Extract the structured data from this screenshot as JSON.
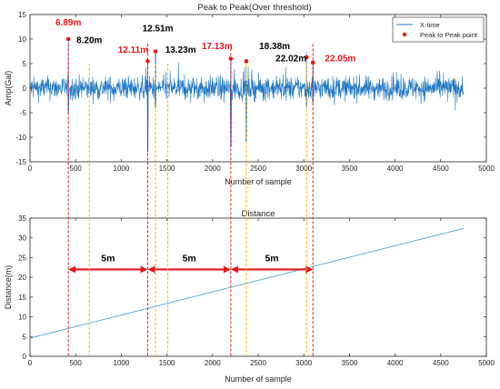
{
  "colors": {
    "signal": "#1f77c4",
    "peak": "#e8141b",
    "red_line": "#e8141b",
    "yellow_line": "#f2b705",
    "arrow": "#e8141b",
    "axis": "#262626"
  },
  "chart_data": [
    {
      "type": "line",
      "title": "Peak to Peak(Over threshold)",
      "xlabel": "Number of sample",
      "ylabel": "Amp(Gal)",
      "xlim": [
        0,
        5000
      ],
      "ylim": [
        -15,
        15
      ],
      "xticks": [
        "0",
        "500",
        "1000",
        "1500",
        "2000",
        "2500",
        "3000",
        "3500",
        "4000",
        "4500",
        "5000"
      ],
      "yticks": [
        "15",
        "10",
        "5",
        "0",
        "-5",
        "-10",
        "-15"
      ],
      "grid": false,
      "legend_position": "top-right",
      "series": [
        {
          "name": "X-time",
          "kind": "noisy-signal",
          "x_range": [
            0,
            4750
          ],
          "baseline_amplitude": 3,
          "spikes": [
            {
              "x": 420,
              "high": 10,
              "low": -5
            },
            {
              "x": 1290,
              "high": 5.5,
              "low": -13
            },
            {
              "x": 1375,
              "high": 7.5,
              "low": -4
            },
            {
              "x": 2200,
              "high": 6,
              "low": -12
            },
            {
              "x": 2370,
              "high": 5.5,
              "low": -11
            },
            {
              "x": 3030,
              "high": 7.5,
              "low": -4
            },
            {
              "x": 3100,
              "high": 5.5,
              "low": -3
            }
          ]
        },
        {
          "name": "Peak to Peak point",
          "kind": "markers",
          "points": [
            {
              "x": 420,
              "y": 10
            },
            {
              "x": 1290,
              "y": 5.5
            },
            {
              "x": 1375,
              "y": 7.5
            },
            {
              "x": 2200,
              "y": 6
            },
            {
              "x": 2370,
              "y": 5.5
            },
            {
              "x": 3030,
              "y": 6.3
            },
            {
              "x": 3100,
              "y": 5.2
            }
          ]
        }
      ],
      "annotations": [
        {
          "text": "6.89m",
          "style": "red",
          "x": 420,
          "y": 12.8
        },
        {
          "text": "8.20m",
          "style": "black",
          "x": 650,
          "y": 9.2
        },
        {
          "text": "12.11m",
          "style": "red",
          "x": 1130,
          "y": 7.2
        },
        {
          "text": "12.51m",
          "style": "black",
          "x": 1400,
          "y": 11.6
        },
        {
          "text": "13.23m",
          "style": "black",
          "x": 1650,
          "y": 7.2
        },
        {
          "text": "17.13m",
          "style": "red",
          "x": 2050,
          "y": 8.0
        },
        {
          "text": "18.38m",
          "style": "black",
          "x": 2680,
          "y": 8.0
        },
        {
          "text": "22.02m",
          "style": "black",
          "x": 2860,
          "y": 5.5
        },
        {
          "text": "22.05m",
          "style": "red",
          "x": 3400,
          "y": 5.5
        }
      ]
    },
    {
      "type": "line",
      "title": "Distance",
      "xlabel": "Number of sample",
      "ylabel": "Distance(m)",
      "xlim": [
        0,
        5000
      ],
      "ylim": [
        0,
        35
      ],
      "xticks": [
        "0",
        "500",
        "1000",
        "1500",
        "2000",
        "2500",
        "3000",
        "3500",
        "4000",
        "4500",
        "5000"
      ],
      "yticks": [
        "35",
        "30",
        "25",
        "20",
        "15",
        "10",
        "5",
        "0"
      ],
      "grid": false,
      "series": [
        {
          "x": [
            0,
            4750
          ],
          "y": [
            4.6,
            32.4
          ]
        }
      ],
      "gap_arrows": [
        {
          "from": 420,
          "to": 1290,
          "y": 22,
          "label": "5m"
        },
        {
          "from": 1290,
          "to": 2200,
          "y": 22,
          "label": "5m"
        },
        {
          "from": 2200,
          "to": 3100,
          "y": 22,
          "label": "5m"
        }
      ]
    }
  ],
  "markers": {
    "red_dashed_x": [
      420,
      1290,
      2200,
      3100
    ],
    "yellow_dashed_x": [
      650,
      1375,
      1510,
      2370,
      3030
    ]
  }
}
